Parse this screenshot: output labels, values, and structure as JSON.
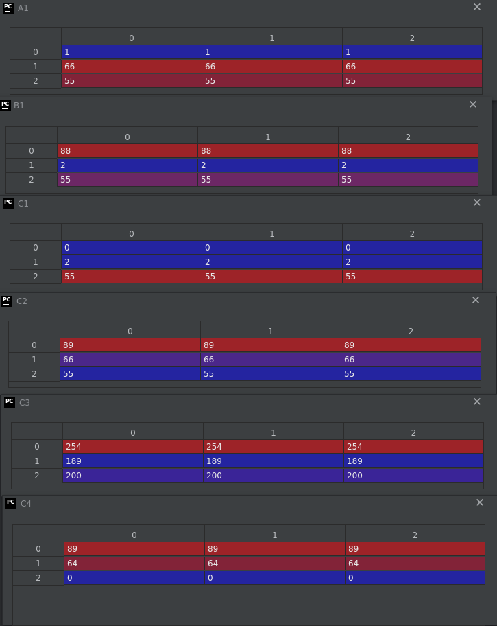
{
  "colors": {
    "blue": "#2424a0",
    "red": "#9d2328",
    "maroon": "#822338",
    "purple": "#6c2765",
    "indigo": "#3a2497",
    "violet": "#4b278a",
    "window_bg": "#3c3f41"
  },
  "icons": {
    "app": "pycharm-icon",
    "close": "close-icon"
  },
  "app_icon_text": "PC",
  "close_glyph": "✕",
  "windows": [
    {
      "title": "A1",
      "columns": [
        "0",
        "1",
        "2"
      ],
      "rows": [
        {
          "index": "0",
          "cells": [
            "1",
            "1",
            "1"
          ],
          "color": "blue"
        },
        {
          "index": "1",
          "cells": [
            "66",
            "66",
            "66"
          ],
          "color": "red"
        },
        {
          "index": "2",
          "cells": [
            "55",
            "55",
            "55"
          ],
          "color": "maroon"
        }
      ]
    },
    {
      "title": "B1",
      "columns": [
        "0",
        "1",
        "2"
      ],
      "rows": [
        {
          "index": "0",
          "cells": [
            "88",
            "88",
            "88"
          ],
          "color": "red"
        },
        {
          "index": "1",
          "cells": [
            "2",
            "2",
            "2"
          ],
          "color": "blue"
        },
        {
          "index": "2",
          "cells": [
            "55",
            "55",
            "55"
          ],
          "color": "purple"
        }
      ]
    },
    {
      "title": "C1",
      "columns": [
        "0",
        "1",
        "2"
      ],
      "rows": [
        {
          "index": "0",
          "cells": [
            "0",
            "0",
            "0"
          ],
          "color": "blue"
        },
        {
          "index": "1",
          "cells": [
            "2",
            "2",
            "2"
          ],
          "color": "blue"
        },
        {
          "index": "2",
          "cells": [
            "55",
            "55",
            "55"
          ],
          "color": "red"
        }
      ]
    },
    {
      "title": "C2",
      "columns": [
        "0",
        "1",
        "2"
      ],
      "rows": [
        {
          "index": "0",
          "cells": [
            "89",
            "89",
            "89"
          ],
          "color": "red"
        },
        {
          "index": "1",
          "cells": [
            "66",
            "66",
            "66"
          ],
          "color": "violet"
        },
        {
          "index": "2",
          "cells": [
            "55",
            "55",
            "55"
          ],
          "color": "blue"
        }
      ]
    },
    {
      "title": "C3",
      "columns": [
        "0",
        "1",
        "2"
      ],
      "rows": [
        {
          "index": "0",
          "cells": [
            "254",
            "254",
            "254"
          ],
          "color": "red"
        },
        {
          "index": "1",
          "cells": [
            "189",
            "189",
            "189"
          ],
          "color": "blue"
        },
        {
          "index": "2",
          "cells": [
            "200",
            "200",
            "200"
          ],
          "color": "indigo"
        }
      ]
    },
    {
      "title": "C4",
      "columns": [
        "0",
        "1",
        "2"
      ],
      "rows": [
        {
          "index": "0",
          "cells": [
            "89",
            "89",
            "89"
          ],
          "color": "red"
        },
        {
          "index": "1",
          "cells": [
            "64",
            "64",
            "64"
          ],
          "color": "maroon"
        },
        {
          "index": "2",
          "cells": [
            "0",
            "0",
            "0"
          ],
          "color": "blue"
        }
      ]
    }
  ]
}
